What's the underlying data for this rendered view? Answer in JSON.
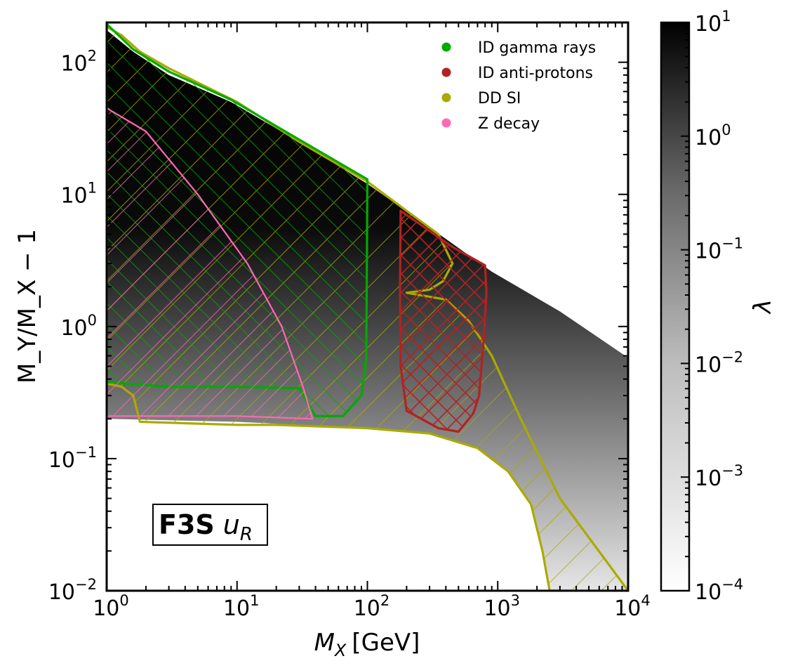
{
  "chart_data": {
    "type": "heatmap",
    "title": "",
    "panel_label": "F3S",
    "panel_label_symbol": "u",
    "panel_label_subscript": "R",
    "xlabel": {
      "symbol": "M",
      "subscript": "X",
      "unit": "[GeV]"
    },
    "ylabel": {
      "text": "M_Y/M_X − 1"
    },
    "colorbar_label": "λ",
    "xscale": "log",
    "yscale": "log",
    "xlim": [
      1,
      10000
    ],
    "ylim": [
      0.01,
      200
    ],
    "color_scale": {
      "min": 0.0001,
      "max": 10,
      "low_color": "#ffffff",
      "high_color": "#000000"
    },
    "x_tick_labels": [
      {
        "value": 1,
        "base": "10",
        "exp": "0"
      },
      {
        "value": 10,
        "base": "10",
        "exp": "1"
      },
      {
        "value": 100,
        "base": "10",
        "exp": "2"
      },
      {
        "value": 1000,
        "base": "10",
        "exp": "3"
      },
      {
        "value": 10000,
        "base": "10",
        "exp": "4"
      }
    ],
    "y_tick_labels": [
      {
        "value": 0.01,
        "base": "10",
        "exp": "−2"
      },
      {
        "value": 0.1,
        "base": "10",
        "exp": "−1"
      },
      {
        "value": 1,
        "base": "10",
        "exp": "0"
      },
      {
        "value": 10,
        "base": "10",
        "exp": "1"
      },
      {
        "value": 100,
        "base": "10",
        "exp": "2"
      }
    ],
    "colorbar_tick_labels": [
      {
        "value": 10,
        "base": "10",
        "exp": "1"
      },
      {
        "value": 1,
        "base": "10",
        "exp": "0"
      },
      {
        "value": 0.1,
        "base": "10",
        "exp": "−1"
      },
      {
        "value": 0.01,
        "base": "10",
        "exp": "−2"
      },
      {
        "value": 0.001,
        "base": "10",
        "exp": "−3"
      },
      {
        "value": 0.0001,
        "base": "10",
        "exp": "−4"
      }
    ],
    "legend": {
      "placement": "top-right",
      "entries": [
        {
          "label": "ID gamma rays",
          "color": "#00aa00"
        },
        {
          "label": "ID anti-protons",
          "color": "#b22222"
        },
        {
          "label": "DD SI",
          "color": "#aaaa00"
        },
        {
          "label": "Z decay",
          "color": "#ff69b4"
        }
      ]
    },
    "series": [
      {
        "name": "viable region upper edge",
        "color": "#000000",
        "points": [
          [
            1,
            175
          ],
          [
            1.6,
            120
          ],
          [
            3,
            80
          ],
          [
            9,
            50
          ],
          [
            30,
            25
          ],
          [
            100,
            12
          ],
          [
            400,
            4.6
          ],
          [
            900,
            2.6
          ],
          [
            3000,
            1.3
          ],
          [
            10000,
            0.58
          ]
        ]
      },
      {
        "name": "viable region lower edge",
        "color": "#cccccc",
        "points": [
          [
            1,
            0.2
          ],
          [
            10,
            0.19
          ],
          [
            100,
            0.17
          ],
          [
            300,
            0.155
          ],
          [
            700,
            0.12
          ],
          [
            1200,
            0.08
          ],
          [
            1800,
            0.045
          ],
          [
            2200,
            0.02
          ],
          [
            2500,
            0.01
          ]
        ]
      },
      {
        "name": "DD SI",
        "color": "#aaaa00",
        "points": [
          [
            1,
            185
          ],
          [
            1.3,
            160
          ],
          [
            1.8,
            120
          ],
          [
            3,
            90
          ],
          [
            10,
            50
          ],
          [
            30,
            25
          ],
          [
            100,
            12.5
          ],
          [
            200,
            7.5
          ],
          [
            350,
            5
          ],
          [
            450,
            3
          ],
          [
            380,
            2.2
          ],
          [
            300,
            1.9
          ],
          [
            200,
            1.8
          ],
          [
            400,
            1.6
          ],
          [
            600,
            1.1
          ],
          [
            900,
            0.6
          ],
          [
            1500,
            0.2
          ],
          [
            3000,
            0.05
          ],
          [
            10000,
            0.01
          ],
          [
            2500,
            0.01
          ],
          [
            2200,
            0.02
          ],
          [
            1800,
            0.045
          ],
          [
            1200,
            0.08
          ],
          [
            700,
            0.12
          ],
          [
            300,
            0.155
          ],
          [
            100,
            0.17
          ],
          [
            20,
            0.18
          ],
          [
            10,
            0.18
          ],
          [
            1.8,
            0.19
          ],
          [
            1.6,
            0.3
          ],
          [
            1.3,
            0.35
          ],
          [
            1,
            0.37
          ]
        ]
      },
      {
        "name": "ID gamma rays",
        "color": "#00aa00",
        "points": [
          [
            1,
            195
          ],
          [
            1.6,
            125
          ],
          [
            3,
            85
          ],
          [
            9,
            52
          ],
          [
            30,
            26
          ],
          [
            100,
            13
          ],
          [
            98,
            0.55
          ],
          [
            90,
            0.3
          ],
          [
            65,
            0.21
          ],
          [
            40,
            0.21
          ],
          [
            30,
            0.34
          ],
          [
            10,
            0.35
          ],
          [
            3,
            0.35
          ],
          [
            1,
            0.38
          ]
        ]
      },
      {
        "name": "ID anti-protons",
        "color": "#b22222",
        "points": [
          [
            180,
            7.5
          ],
          [
            250,
            6
          ],
          [
            450,
            4
          ],
          [
            800,
            2.9
          ],
          [
            820,
            1.8
          ],
          [
            780,
            0.8
          ],
          [
            720,
            0.3
          ],
          [
            650,
            0.22
          ],
          [
            500,
            0.16
          ],
          [
            350,
            0.17
          ],
          [
            260,
            0.2
          ],
          [
            200,
            0.23
          ],
          [
            180,
            0.5
          ],
          [
            178,
            2
          ]
        ]
      },
      {
        "name": "Z decay",
        "color": "#ff69b4",
        "points": [
          [
            1,
            45
          ],
          [
            2,
            30
          ],
          [
            5,
            10
          ],
          [
            12,
            3
          ],
          [
            22,
            1
          ],
          [
            32,
            0.35
          ],
          [
            38,
            0.2
          ],
          [
            10,
            0.21
          ],
          [
            1,
            0.21
          ]
        ]
      }
    ]
  }
}
